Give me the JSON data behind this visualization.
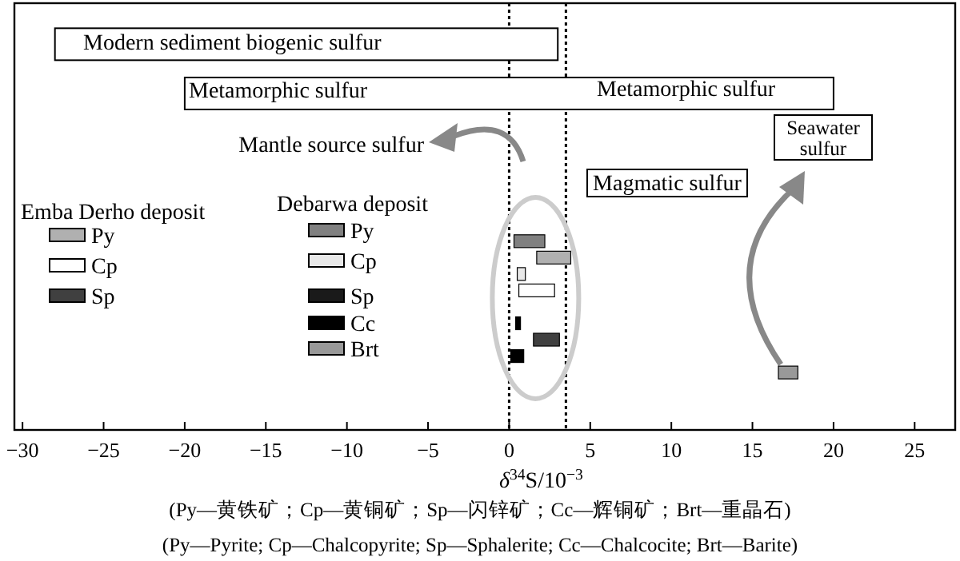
{
  "chart_data": {
    "type": "bar",
    "orientation": "horizontal",
    "xlabel": "δ$^{34}$S/10$^{−3}$",
    "categories": [
      null,
      null,
      null,
      null,
      null,
      null,
      null,
      null,
      null,
      null,
      null,
      null,
      null,
      null,
      null,
      null,
      null,
      null,
      null,
      null,
      null,
      null,
      null,
      null,
      null,
      null
    ],
    "xlim": [
      -30.5,
      27.5
    ],
    "xticks": [
      {
        "value": -30,
        "label": "−30"
      },
      {
        "value": -25,
        "label": "−25"
      },
      {
        "value": -20,
        "label": "−20"
      },
      {
        "value": -15,
        "label": "−15"
      },
      {
        "value": -10,
        "label": "−10"
      },
      {
        "value": -5,
        "label": "−5"
      },
      0,
      5,
      10,
      15,
      20,
      25
    ],
    "tick_labels": "x",
    "grid": false,
    "values": [
      null,
      null,
      31,
      null,
      null,
      40,
      null,
      null,
      null,
      null,
      null,
      null,
      null,
      null,
      1.9,
      2.1,
      0.5,
      2.2,
      null,
      0.3,
      1.6,
      0.8,
      1.2,
      null,
      null,
      null
    ],
    "base": [
      null,
      null,
      -28,
      null,
      null,
      -20,
      null,
      null,
      null,
      null,
      null,
      null,
      null,
      null,
      0.3,
      1.7,
      0.5,
      0.6,
      null,
      0.4,
      1.5,
      0.1,
      16.6,
      null,
      null,
      null
    ],
    "colors": [
      null,
      null,
      "#ffffff",
      null,
      null,
      "#ffffff",
      null,
      null,
      null,
      null,
      null,
      null,
      null,
      null,
      "#808080",
      "#b0b0b0",
      "#e8e8e8",
      "#ffffff",
      null,
      "#000000",
      "#404040",
      "#000000",
      "#999999",
      null,
      null,
      null
    ],
    "ref_lines": [
      {
        "axis": "x",
        "value": 0,
        "line_style": "dotted",
        "color": "#000000"
      },
      {
        "axis": "x",
        "value": 3.5,
        "line_style": "dotted",
        "color": "#000000"
      }
    ],
    "annotations": [
      "Modern sediment biogenic sulfur",
      "Metamorphic sulfur",
      "Metamorphic sulfur",
      "Mantle source sulfur",
      "Magmatic sulfur",
      "Seawater sulfur",
      "Emba Derho deposit",
      "Debarwa deposit",
      "Py",
      "Cp",
      "Sp",
      "Py",
      "Cp",
      "Sp",
      "Cc",
      "Brt",
      "(Py—黄铁矿；Cp—黄铜矿；Sp—闪锌矿；Cc—辉铜矿；Brt—重晶石)",
      "(Py—Pyrite; Cp—Chalcopyrite; Sp—Sphalerite; Cc—Chalcocite; Brt—Barite)"
    ]
  }
}
